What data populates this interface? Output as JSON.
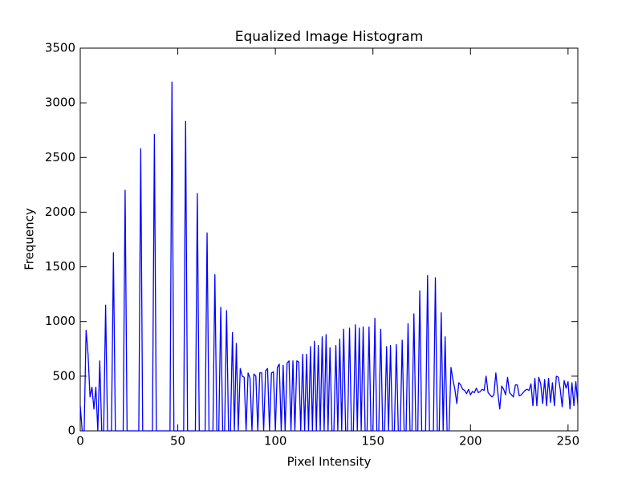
{
  "chart_data": {
    "type": "line",
    "title": "Equalized Image Histogram",
    "x_label": "Pixel Intensity",
    "y_label": "Frequency",
    "color": "#0000ff",
    "x": [
      0,
      1,
      2,
      3,
      4,
      5,
      6,
      7,
      8,
      9,
      10,
      11,
      12,
      13,
      14,
      15,
      16,
      17,
      18,
      19,
      20,
      21,
      22,
      23,
      24,
      25,
      26,
      27,
      28,
      29,
      30,
      31,
      32,
      33,
      34,
      35,
      36,
      37,
      38,
      39,
      40,
      41,
      42,
      43,
      44,
      45,
      46,
      47,
      48,
      49,
      50,
      51,
      52,
      53,
      54,
      55,
      56,
      57,
      58,
      59,
      60,
      61,
      62,
      63,
      64,
      65,
      66,
      67,
      68,
      69,
      70,
      71,
      72,
      73,
      74,
      75,
      76,
      77,
      78,
      79,
      80,
      81,
      82,
      83,
      84,
      85,
      86,
      87,
      88,
      89,
      90,
      91,
      92,
      93,
      94,
      95,
      96,
      97,
      98,
      99,
      100,
      101,
      102,
      103,
      104,
      105,
      106,
      107,
      108,
      109,
      110,
      111,
      112,
      113,
      114,
      115,
      116,
      117,
      118,
      119,
      120,
      121,
      122,
      123,
      124,
      125,
      126,
      127,
      128,
      129,
      130,
      131,
      132,
      133,
      134,
      135,
      136,
      137,
      138,
      139,
      140,
      141,
      142,
      143,
      144,
      145,
      146,
      147,
      148,
      149,
      150,
      151,
      152,
      153,
      154,
      155,
      156,
      157,
      158,
      159,
      160,
      161,
      162,
      163,
      164,
      165,
      166,
      167,
      168,
      169,
      170,
      171,
      172,
      173,
      174,
      175,
      176,
      177,
      178,
      179,
      180,
      181,
      182,
      183,
      184,
      185,
      186,
      187,
      188,
      189,
      190,
      191,
      192,
      193,
      194,
      195,
      196,
      197,
      198,
      199,
      200,
      201,
      202,
      203,
      204,
      205,
      206,
      207,
      208,
      209,
      210,
      211,
      212,
      213,
      214,
      215,
      216,
      217,
      218,
      219,
      220,
      221,
      222,
      223,
      224,
      225,
      226,
      227,
      228,
      229,
      230,
      231,
      232,
      233,
      234,
      235,
      236,
      237,
      238,
      239,
      240,
      241,
      242,
      243,
      244,
      245,
      246,
      247,
      248,
      249,
      250,
      251,
      252,
      253,
      254,
      255
    ],
    "values": [
      230,
      0,
      0,
      920,
      700,
      310,
      400,
      200,
      400,
      0,
      640,
      0,
      0,
      1150,
      0,
      0,
      0,
      1630,
      0,
      0,
      0,
      0,
      0,
      2200,
      0,
      0,
      0,
      0,
      0,
      0,
      0,
      2580,
      0,
      0,
      0,
      0,
      0,
      0,
      2710,
      0,
      0,
      0,
      0,
      0,
      0,
      0,
      0,
      3190,
      0,
      0,
      0,
      0,
      0,
      0,
      2830,
      0,
      0,
      0,
      0,
      0,
      2170,
      0,
      0,
      0,
      0,
      1810,
      0,
      0,
      0,
      1430,
      0,
      0,
      1130,
      0,
      0,
      1100,
      0,
      0,
      900,
      0,
      800,
      0,
      570,
      500,
      490,
      0,
      530,
      480,
      0,
      520,
      500,
      0,
      530,
      530,
      0,
      550,
      570,
      0,
      530,
      540,
      0,
      580,
      610,
      0,
      600,
      0,
      620,
      640,
      0,
      640,
      0,
      640,
      630,
      0,
      700,
      0,
      700,
      0,
      770,
      0,
      820,
      0,
      780,
      0,
      860,
      0,
      880,
      0,
      760,
      0,
      0,
      780,
      0,
      840,
      0,
      930,
      0,
      0,
      940,
      0,
      0,
      970,
      0,
      940,
      0,
      950,
      0,
      0,
      950,
      0,
      0,
      1030,
      0,
      0,
      930,
      0,
      0,
      770,
      0,
      780,
      0,
      0,
      790,
      0,
      0,
      830,
      0,
      0,
      980,
      0,
      0,
      1070,
      0,
      0,
      1280,
      0,
      0,
      0,
      1420,
      0,
      0,
      0,
      1400,
      0,
      0,
      1080,
      0,
      860,
      0,
      0,
      580,
      470,
      380,
      250,
      440,
      420,
      380,
      370,
      340,
      380,
      330,
      360,
      350,
      390,
      350,
      360,
      380,
      370,
      500,
      350,
      330,
      310,
      330,
      530,
      350,
      200,
      410,
      380,
      330,
      490,
      350,
      330,
      310,
      420,
      420,
      320,
      330,
      350,
      370,
      380,
      370,
      430,
      230,
      480,
      230,
      490,
      430,
      250,
      470,
      230,
      480,
      260,
      440,
      230,
      500,
      490,
      380,
      220,
      460,
      390,
      450,
      200,
      440,
      230,
      450,
      240
    ],
    "xlim": [
      0,
      255
    ],
    "xticks": [
      0,
      50,
      100,
      150,
      200,
      250
    ],
    "ylim": [
      0,
      3500
    ],
    "yticks": [
      0,
      500,
      1000,
      1500,
      2000,
      2500,
      3000,
      3500
    ]
  }
}
